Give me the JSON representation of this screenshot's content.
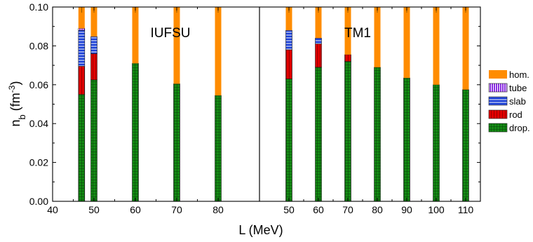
{
  "chart_data": {
    "type": "bar",
    "ylabel": "n_b (fm^-3)",
    "xlabel": "L (MeV)",
    "ylim": [
      0,
      0.1
    ],
    "yticks": [
      "0.00",
      "0.02",
      "0.04",
      "0.06",
      "0.08",
      "0.10"
    ],
    "legend": {
      "placement": "right",
      "entries": [
        {
          "key": "hom",
          "label": "hom.",
          "color": "#ff8c00"
        },
        {
          "key": "tube",
          "label": "tube",
          "color": "#8a2be2"
        },
        {
          "key": "slab",
          "label": "slab",
          "color": "#1a3fd6"
        },
        {
          "key": "rod",
          "label": "rod",
          "color": "#e00000"
        },
        {
          "key": "drop",
          "label": "drop.",
          "color": "#138a13"
        }
      ]
    },
    "panels": [
      {
        "label": "IUFSU",
        "xlim": [
          40,
          90
        ],
        "xticks": [
          "40",
          "50",
          "60",
          "70",
          "80"
        ],
        "bars": [
          {
            "L": 47,
            "drop": 0.055,
            "rod": 0.0695,
            "slab": 0.088,
            "tube": 0.089,
            "top": 0.1
          },
          {
            "L": 50,
            "drop": 0.0625,
            "rod": 0.076,
            "slab": 0.0848,
            "tube": 0.0848,
            "top": 0.1
          },
          {
            "L": 60,
            "drop": 0.071,
            "rod": 0.071,
            "slab": 0.071,
            "tube": 0.071,
            "top": 0.1
          },
          {
            "L": 70,
            "drop": 0.0605,
            "rod": 0.0605,
            "slab": 0.0605,
            "tube": 0.0605,
            "top": 0.1
          },
          {
            "L": 80,
            "drop": 0.0545,
            "rod": 0.0545,
            "slab": 0.0545,
            "tube": 0.0545,
            "top": 0.1
          }
        ]
      },
      {
        "label": "TM1",
        "xlim": [
          40,
          115
        ],
        "xticks": [
          "50",
          "60",
          "70",
          "80",
          "90",
          "100",
          "110"
        ],
        "bars": [
          {
            "L": 50,
            "drop": 0.063,
            "rod": 0.078,
            "slab": 0.088,
            "tube": 0.088,
            "top": 0.1
          },
          {
            "L": 60,
            "drop": 0.069,
            "rod": 0.081,
            "slab": 0.084,
            "tube": 0.084,
            "top": 0.1
          },
          {
            "L": 70,
            "drop": 0.072,
            "rod": 0.0755,
            "slab": 0.0755,
            "tube": 0.0755,
            "top": 0.1
          },
          {
            "L": 80,
            "drop": 0.069,
            "rod": 0.069,
            "slab": 0.069,
            "tube": 0.069,
            "top": 0.1
          },
          {
            "L": 90,
            "drop": 0.0635,
            "rod": 0.0635,
            "slab": 0.0635,
            "tube": 0.0635,
            "top": 0.1
          },
          {
            "L": 100,
            "drop": 0.06,
            "rod": 0.06,
            "slab": 0.06,
            "tube": 0.06,
            "top": 0.1
          },
          {
            "L": 110,
            "drop": 0.0575,
            "rod": 0.0575,
            "slab": 0.0575,
            "tube": 0.0575,
            "top": 0.1
          }
        ]
      }
    ]
  }
}
